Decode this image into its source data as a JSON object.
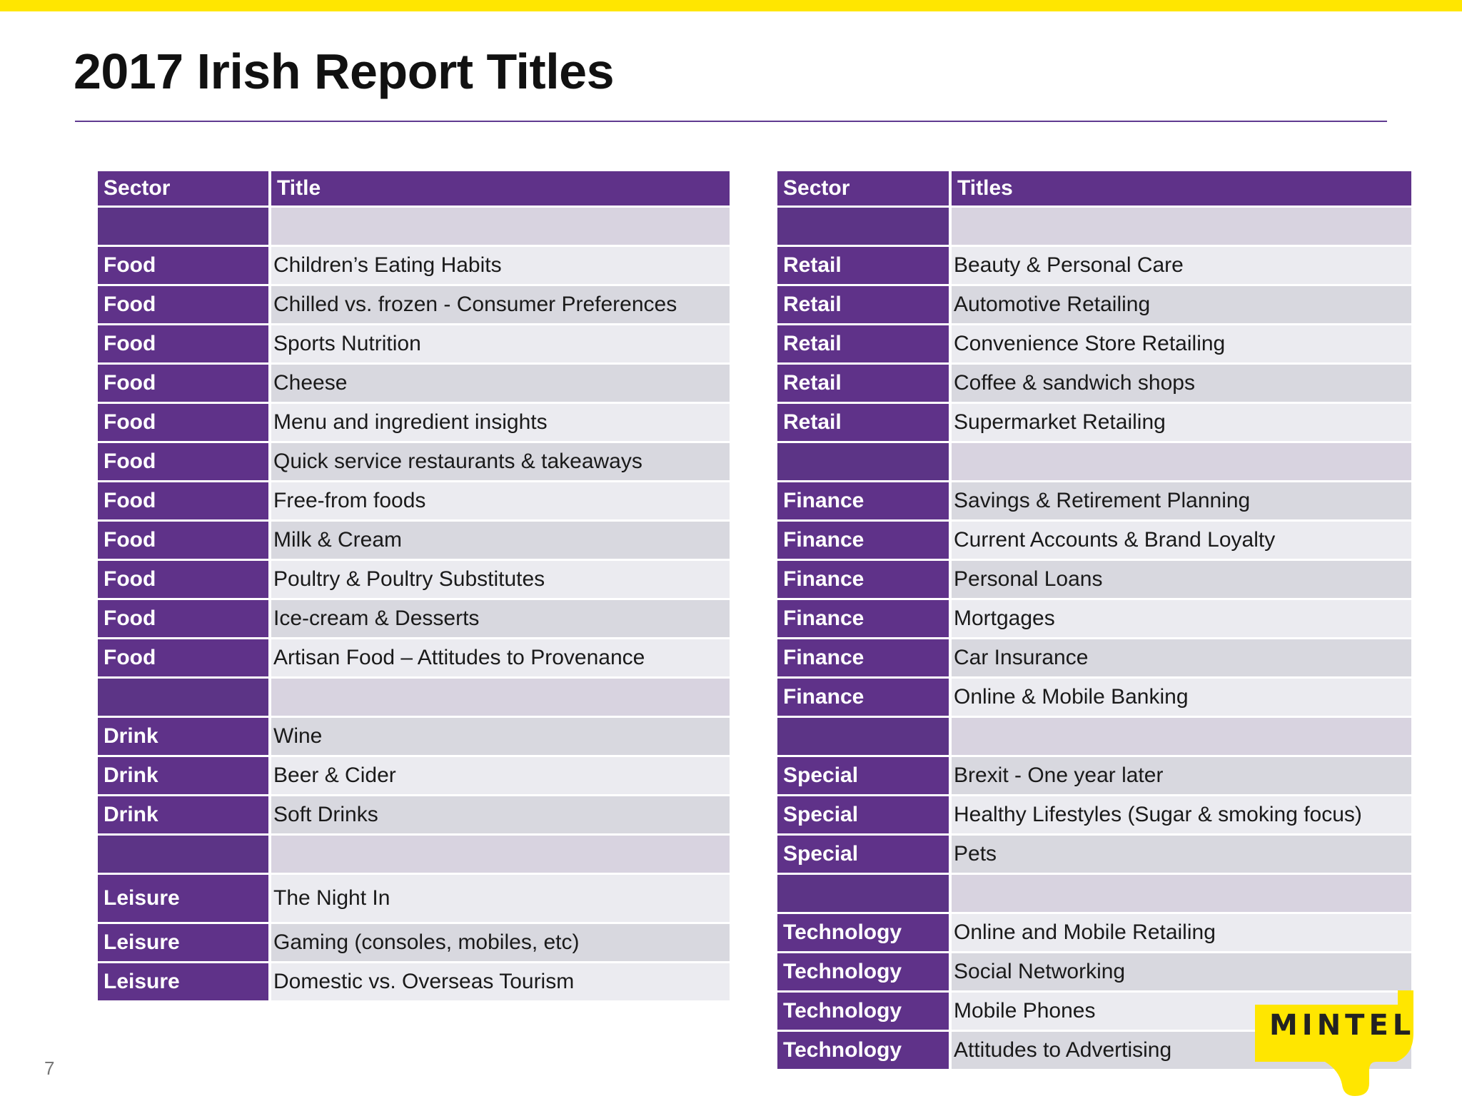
{
  "page": {
    "title": "2017 Irish Report Titles",
    "page_number": "7",
    "logo_text": "MINTEL"
  },
  "left_table": {
    "headers": {
      "sector": "Sector",
      "title": "Title"
    },
    "rows": [
      {
        "sector": "",
        "title": ""
      },
      {
        "sector": "Food",
        "title": "Children’s Eating Habits"
      },
      {
        "sector": "Food",
        "title": "Chilled vs. frozen - Consumer Preferences"
      },
      {
        "sector": "Food",
        "title": "Sports Nutrition"
      },
      {
        "sector": "Food",
        "title": "Cheese"
      },
      {
        "sector": "Food",
        "title": "Menu and ingredient insights"
      },
      {
        "sector": "Food",
        "title": "Quick service restaurants & takeaways"
      },
      {
        "sector": "Food",
        "title": "Free-from foods"
      },
      {
        "sector": "Food",
        "title": "Milk & Cream"
      },
      {
        "sector": "Food",
        "title": "Poultry & Poultry Substitutes"
      },
      {
        "sector": "Food",
        "title": "Ice-cream & Desserts"
      },
      {
        "sector": "Food",
        "title": "Artisan Food – Attitudes to Provenance"
      },
      {
        "sector": "",
        "title": ""
      },
      {
        "sector": "Drink",
        "title": "Wine"
      },
      {
        "sector": "Drink",
        "title": "Beer & Cider"
      },
      {
        "sector": "Drink",
        "title": "Soft Drinks"
      },
      {
        "sector": "",
        "title": ""
      },
      {
        "sector": "Leisure",
        "title": "The Night In"
      },
      {
        "sector": "Leisure",
        "title": "Gaming (consoles, mobiles, etc)"
      },
      {
        "sector": "Leisure",
        "title": "Domestic vs. Overseas Tourism"
      }
    ]
  },
  "right_table": {
    "headers": {
      "sector": "Sector",
      "title": "Titles"
    },
    "rows": [
      {
        "sector": "",
        "title": ""
      },
      {
        "sector": "Retail",
        "title": "Beauty & Personal Care"
      },
      {
        "sector": "Retail",
        "title": "Automotive Retailing"
      },
      {
        "sector": "Retail",
        "title": "Convenience Store Retailing"
      },
      {
        "sector": "Retail",
        "title": "Coffee & sandwich shops"
      },
      {
        "sector": "Retail",
        "title": "Supermarket Retailing"
      },
      {
        "sector": "",
        "title": ""
      },
      {
        "sector": "Finance",
        "title": "Savings & Retirement Planning"
      },
      {
        "sector": "Finance",
        "title": "Current Accounts & Brand Loyalty"
      },
      {
        "sector": "Finance",
        "title": "Personal Loans"
      },
      {
        "sector": "Finance",
        "title": "Mortgages"
      },
      {
        "sector": "Finance",
        "title": "Car Insurance"
      },
      {
        "sector": "Finance",
        "title": "Online & Mobile Banking"
      },
      {
        "sector": "",
        "title": ""
      },
      {
        "sector": "Special",
        "title": "Brexit - One year later"
      },
      {
        "sector": "Special",
        "title": "Healthy Lifestyles (Sugar & smoking focus)"
      },
      {
        "sector": "Special",
        "title": "Pets"
      },
      {
        "sector": "",
        "title": ""
      },
      {
        "sector": "Technology",
        "title": "Online and Mobile Retailing"
      },
      {
        "sector": "Technology",
        "title": "Social Networking"
      },
      {
        "sector": "Technology",
        "title": "Mobile Phones"
      },
      {
        "sector": "Technology",
        "title": "Attitudes to Advertising"
      }
    ]
  },
  "colors": {
    "accent_yellow": "#ffe600",
    "header_purple": "#5f3289",
    "row_light": "#ebebf0",
    "row_dark": "#d8d8df"
  }
}
